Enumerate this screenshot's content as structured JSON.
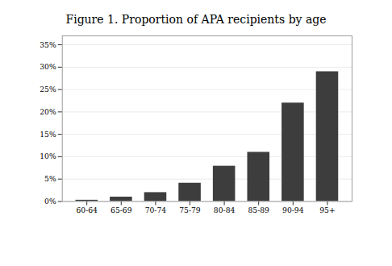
{
  "chart_data": {
    "type": "bar",
    "title": "Figure 1. Proportion of APA recipients by age",
    "categories": [
      "60-64",
      "65-69",
      "70-74",
      "75-79",
      "80-84",
      "85-89",
      "90-94",
      "95+"
    ],
    "values": [
      0.003,
      0.01,
      0.02,
      0.041,
      0.079,
      0.11,
      0.22,
      0.29
    ],
    "color": "#3d3d3d",
    "ylim": [
      0,
      0.37
    ],
    "yticks": [
      {
        "value": 0,
        "label": "0%"
      },
      {
        "value": 0.05,
        "label": "5%"
      },
      {
        "value": 0.1,
        "label": "10%"
      },
      {
        "value": 0.15,
        "label": "15%"
      },
      {
        "value": 0.2,
        "label": "20%"
      },
      {
        "value": 0.25,
        "label": "25%"
      },
      {
        "value": 0.3,
        "label": "30%"
      },
      {
        "value": 0.35,
        "label": "35%"
      }
    ],
    "grid": true
  }
}
